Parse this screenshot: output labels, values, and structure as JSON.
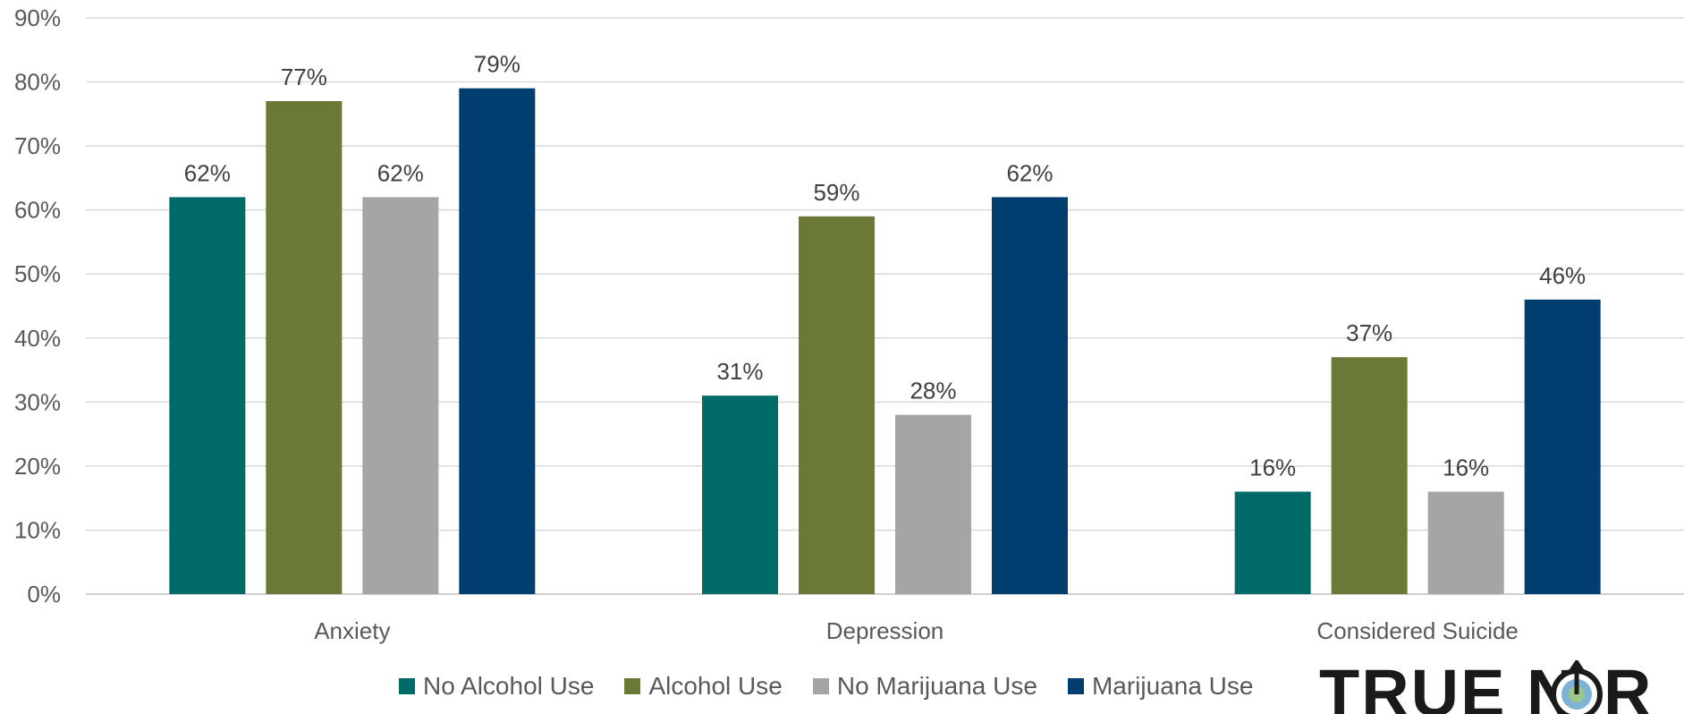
{
  "chart_data": {
    "type": "bar",
    "categories": [
      "Anxiety",
      "Depression",
      "Considered Suicide"
    ],
    "series": [
      {
        "name": "No Alcohol Use",
        "color": "#006B68",
        "values": [
          62,
          31,
          16
        ]
      },
      {
        "name": "Alcohol Use",
        "color": "#6A7935",
        "values": [
          77,
          59,
          37
        ]
      },
      {
        "name": "No Marijuana Use",
        "color": "#A5A5A5",
        "values": [
          62,
          28,
          16
        ]
      },
      {
        "name": "Marijuana Use",
        "color": "#003E6F",
        "values": [
          79,
          62,
          46
        ]
      }
    ],
    "ylim": [
      0,
      90
    ],
    "yticks": [
      "0%",
      "10%",
      "20%",
      "30%",
      "40%",
      "50%",
      "60%",
      "70%",
      "80%",
      "90%"
    ],
    "value_suffix": "%",
    "grid": true,
    "legend_position": "bottom",
    "title": "",
    "xlabel": "",
    "ylabel": ""
  },
  "logo": {
    "text": "TRUE NORTH"
  }
}
